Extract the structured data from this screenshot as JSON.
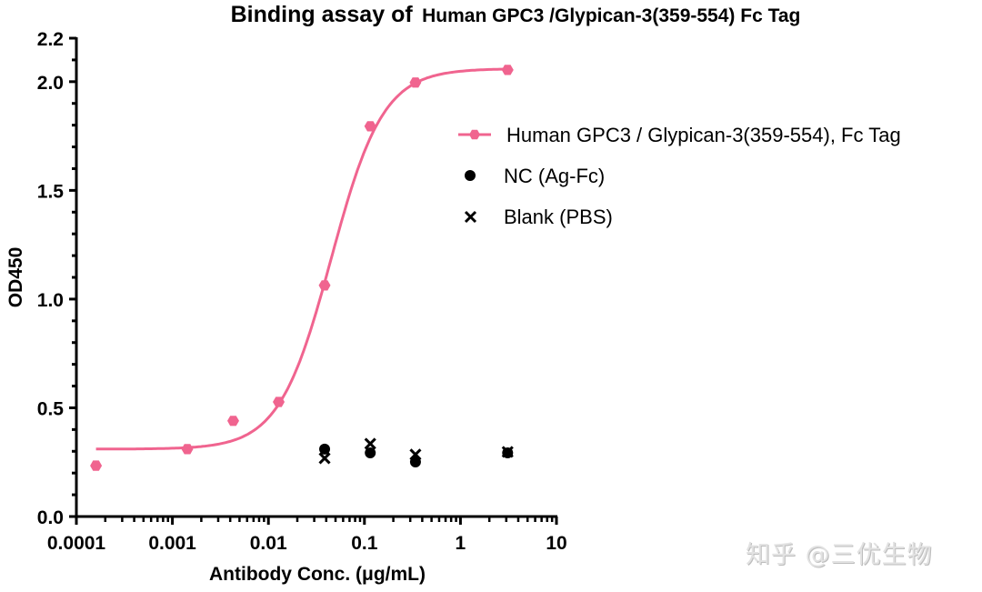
{
  "chart_data": {
    "type": "scatter",
    "title": "Binding assay of Human GPC3 /Glypican-3(359-554) Fc Tag",
    "title_parts": [
      "Binding assay of",
      "Human GPC3 /Glypican-3(359-554) Fc Tag"
    ],
    "xlabel": "Antibody Conc. (μg/mL)",
    "ylabel": "OD450",
    "xscale": "log",
    "xlim": [
      0.0001,
      10
    ],
    "ylim": [
      0.0,
      2.2
    ],
    "x_ticks": [
      "0.0001",
      "0.001",
      "0.01",
      "0.1",
      "1",
      "10"
    ],
    "y_ticks": [
      "0.0",
      "0.5",
      "1.0",
      "1.5",
      "2.0",
      "2.2"
    ],
    "grid": false,
    "legend_position": "right",
    "series": [
      {
        "name": "Human GPC3 / Glypican-3(359-554), Fc Tag",
        "color": "#f0648f",
        "marker": "hexagon",
        "fit": "4PL sigmoid",
        "x": [
          0.00016,
          0.00143,
          0.0043,
          0.0128,
          0.0385,
          0.115,
          0.34,
          3.1
        ],
        "values": [
          0.234,
          0.31,
          0.44,
          0.527,
          1.063,
          1.795,
          1.996,
          2.054
        ]
      },
      {
        "name": "NC (Ag-Fc)",
        "color": "#000000",
        "marker": "circle",
        "x": [
          0.0385,
          0.115,
          0.34,
          3.1
        ],
        "values": [
          0.31,
          0.293,
          0.251,
          0.293
        ]
      },
      {
        "name": "Blank (PBS)",
        "color": "#000000",
        "marker": "x",
        "x": [
          0.0385,
          0.115,
          0.34,
          3.1
        ],
        "values": [
          0.268,
          0.335,
          0.285,
          0.297
        ]
      }
    ],
    "fit_params": {
      "bottom": 0.31,
      "top": 2.06,
      "ec50": 0.045,
      "hill": 1.6
    }
  },
  "watermark": "知乎 @三优生物"
}
